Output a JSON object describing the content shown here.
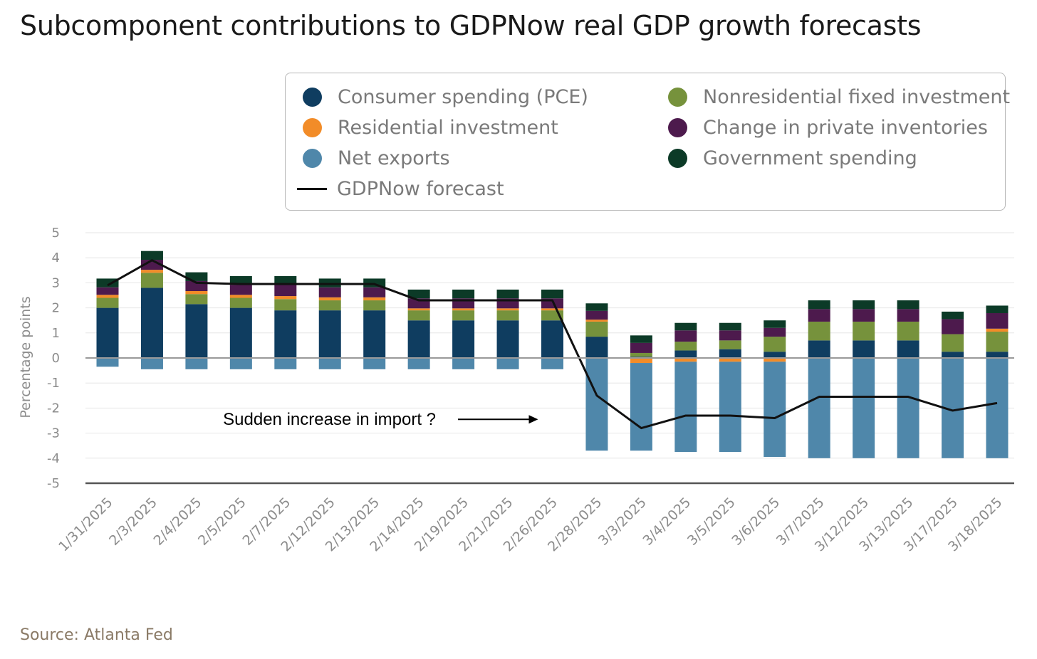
{
  "chart_data": {
    "type": "bar",
    "title": "Subcomponent contributions to GDPNow real GDP growth forecasts",
    "ylabel": "Percentage points",
    "xlabel": "",
    "ylim": [
      -5,
      5
    ],
    "yticks": [
      5,
      4,
      3,
      2,
      1,
      0,
      -1,
      -2,
      -3,
      -4,
      -5
    ],
    "grid": true,
    "legend_position": "top-right",
    "categories": [
      "1/31/2025",
      "2/3/2025",
      "2/4/2025",
      "2/5/2025",
      "2/7/2025",
      "2/12/2025",
      "2/13/2025",
      "2/14/2025",
      "2/19/2025",
      "2/21/2025",
      "2/26/2025",
      "2/28/2025",
      "3/3/2025",
      "3/4/2025",
      "3/5/2025",
      "3/6/2025",
      "3/7/2025",
      "3/12/2025",
      "3/13/2025",
      "3/17/2025",
      "3/18/2025"
    ],
    "series": [
      {
        "name": "Consumer spending (PCE)",
        "kind": "bar",
        "color": "#0f3d60",
        "values": [
          2.0,
          2.8,
          2.15,
          2.0,
          1.9,
          1.9,
          1.9,
          1.5,
          1.5,
          1.5,
          1.5,
          0.85,
          0.05,
          0.3,
          0.35,
          0.25,
          0.7,
          0.7,
          0.7,
          0.25,
          0.25
        ]
      },
      {
        "name": "Nonresidential fixed investment",
        "kind": "bar",
        "color": "#76923c",
        "values": [
          0.4,
          0.6,
          0.4,
          0.4,
          0.45,
          0.4,
          0.4,
          0.4,
          0.4,
          0.4,
          0.4,
          0.6,
          0.15,
          0.35,
          0.35,
          0.6,
          0.75,
          0.75,
          0.75,
          0.7,
          0.8
        ]
      },
      {
        "name": "Residential investment",
        "kind": "bar",
        "color": "#f28c28",
        "values": [
          0.12,
          0.12,
          0.12,
          0.12,
          0.12,
          0.12,
          0.12,
          0.08,
          0.08,
          0.08,
          0.08,
          0.08,
          -0.2,
          -0.15,
          -0.15,
          -0.15,
          0.0,
          0.0,
          0.0,
          0.0,
          0.12
        ]
      },
      {
        "name": "Change in private inventories",
        "kind": "bar",
        "color": "#4d1a4d",
        "values": [
          0.3,
          0.4,
          0.4,
          0.4,
          0.45,
          0.4,
          0.4,
          0.4,
          0.4,
          0.4,
          0.4,
          0.35,
          0.4,
          0.45,
          0.4,
          0.35,
          0.5,
          0.5,
          0.5,
          0.6,
          0.62
        ]
      },
      {
        "name": "Net exports",
        "kind": "bar",
        "color": "#4f87aa",
        "values": [
          -0.35,
          -0.45,
          -0.45,
          -0.45,
          -0.45,
          -0.45,
          -0.45,
          -0.45,
          -0.45,
          -0.45,
          -0.45,
          -3.7,
          -3.5,
          -3.6,
          -3.6,
          -3.8,
          -4.0,
          -4.0,
          -4.0,
          -4.0,
          -4.0
        ]
      },
      {
        "name": "Government spending",
        "kind": "bar",
        "color": "#0c3a27",
        "values": [
          0.35,
          0.35,
          0.35,
          0.35,
          0.35,
          0.35,
          0.35,
          0.35,
          0.35,
          0.35,
          0.35,
          0.3,
          0.3,
          0.3,
          0.3,
          0.3,
          0.35,
          0.35,
          0.35,
          0.3,
          0.3
        ]
      },
      {
        "name": "GDPNow forecast",
        "kind": "line",
        "color": "#111111",
        "values": [
          2.9,
          3.9,
          3.0,
          2.95,
          2.95,
          2.95,
          2.95,
          2.3,
          2.3,
          2.3,
          2.3,
          -1.5,
          -2.8,
          -2.3,
          -2.3,
          -2.4,
          -1.55,
          -1.55,
          -1.55,
          -2.1,
          -1.8
        ]
      }
    ],
    "annotations": [
      {
        "text": "Sudden increase in import ?",
        "x_category": "2/26/2025",
        "y": -2.45,
        "arrow": "right"
      }
    ]
  },
  "legend": [
    {
      "label": "Consumer spending (PCE)",
      "color": "#0f3d60",
      "marker": "dot"
    },
    {
      "label": "Nonresidential fixed investment",
      "color": "#76923c",
      "marker": "dot"
    },
    {
      "label": "Residential investment",
      "color": "#f28c28",
      "marker": "dot"
    },
    {
      "label": "Change in private inventories",
      "color": "#4d1a4d",
      "marker": "dot"
    },
    {
      "label": "Net exports",
      "color": "#4f87aa",
      "marker": "dot"
    },
    {
      "label": "Government spending",
      "color": "#0c3a27",
      "marker": "dot"
    },
    {
      "label": "GDPNow forecast",
      "color": "#111111",
      "marker": "line"
    }
  ],
  "source": "Source: Atlanta Fed"
}
